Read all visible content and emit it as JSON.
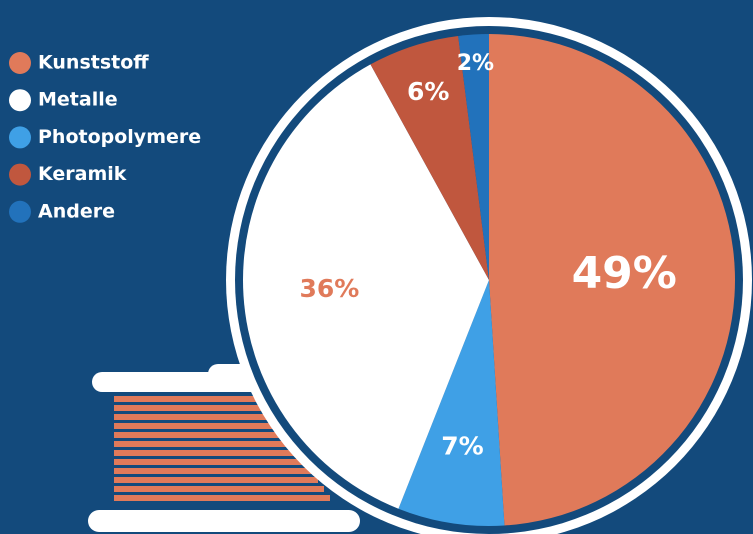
{
  "chart_data": {
    "type": "pie",
    "categories": [
      "Kunststoff",
      "Metalle",
      "Photopolymere",
      "Keramik",
      "Andere"
    ],
    "values": [
      49,
      36,
      7,
      6,
      2
    ],
    "value_labels": [
      "49%",
      "36%",
      "7%",
      "6%",
      "2%"
    ],
    "colors": [
      "#e07a5a",
      "#ffffff",
      "#3fa0e6",
      "#c0573e",
      "#2272bb"
    ]
  }
}
